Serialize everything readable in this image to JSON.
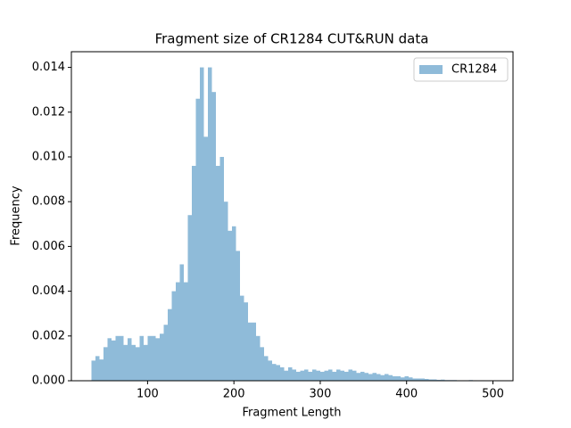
{
  "chart_data": {
    "type": "histogram",
    "title": "Fragment size of CR1284 CUT&RUN data",
    "x_label": "Fragment Length",
    "y_label": "Frequency",
    "xlim": [
      11.75,
      523.25
    ],
    "ylim": [
      0,
      0.0147
    ],
    "xticks": [
      100,
      200,
      300,
      400,
      500
    ],
    "yticks": [
      {
        "value": 0,
        "label": "0.000"
      },
      {
        "value": 0.002,
        "label": "0.002"
      },
      {
        "value": 0.004,
        "label": "0.004"
      },
      {
        "value": 0.006,
        "label": "0.006"
      },
      {
        "value": 0.008,
        "label": "0.008"
      },
      {
        "value": 0.01,
        "label": "0.010"
      },
      {
        "value": 0.012,
        "label": "0.012"
      },
      {
        "value": 0.014,
        "label": "0.014"
      }
    ],
    "legend": "upper right",
    "grid": false,
    "bins": [
      35,
      39.65,
      44.3,
      48.95,
      53.6,
      58.25,
      62.9,
      67.55,
      72.2,
      76.85,
      81.5,
      86.15,
      90.8,
      95.45,
      100.1,
      104.75,
      109.4,
      114.05,
      118.7,
      123.35,
      128,
      132.65,
      137.3,
      141.95,
      146.6,
      151.25,
      155.9,
      160.55,
      165.2,
      169.85,
      174.5,
      179.15,
      183.8,
      188.45,
      193.1,
      197.75,
      202.4,
      207.05,
      211.7,
      216.35,
      221,
      225.65,
      230.3,
      234.95,
      239.6,
      244.25,
      248.9,
      253.55,
      258.2,
      262.85,
      267.5,
      272.15,
      276.8,
      281.45,
      286.1,
      290.75,
      295.4,
      300.05,
      304.7,
      309.35,
      314,
      318.65,
      323.3,
      327.95,
      332.6,
      337.25,
      341.9,
      346.55,
      351.2,
      355.85,
      360.5,
      365.15,
      369.8,
      374.45,
      379.1,
      383.75,
      388.4,
      393.05,
      397.7,
      402.35,
      407,
      411.65,
      416.3,
      420.95,
      425.6,
      430.25,
      434.9,
      439.55,
      444.2,
      448.85,
      453.5,
      458.15,
      462.8,
      467.45,
      472.1,
      476.75,
      481.4,
      486.05,
      490.7,
      495.35,
      500
    ],
    "series": [
      {
        "name": "CR1284",
        "color": "#1f77b4",
        "opacity": 0.5,
        "values": [
          0.0009,
          0.0011,
          0.00095,
          0.0015,
          0.0019,
          0.0018,
          0.002,
          0.002,
          0.0016,
          0.0019,
          0.0016,
          0.0015,
          0.002,
          0.0016,
          0.002,
          0.002,
          0.0019,
          0.0021,
          0.0025,
          0.0032,
          0.004,
          0.0044,
          0.0052,
          0.0044,
          0.0074,
          0.0096,
          0.0126,
          0.014,
          0.0109,
          0.014,
          0.0129,
          0.0096,
          0.01,
          0.008,
          0.0067,
          0.0069,
          0.0058,
          0.0038,
          0.0035,
          0.0026,
          0.0026,
          0.002,
          0.0015,
          0.0011,
          0.0009,
          0.00075,
          0.0007,
          0.0006,
          0.00045,
          0.0006,
          0.0005,
          0.0004,
          0.00045,
          0.0005,
          0.0004,
          0.0005,
          0.00045,
          0.0004,
          0.00045,
          0.0005,
          0.0004,
          0.0005,
          0.00045,
          0.0004,
          0.0005,
          0.00045,
          0.00035,
          0.0004,
          0.00035,
          0.0003,
          0.00035,
          0.0003,
          0.00025,
          0.0003,
          0.00025,
          0.0002,
          0.0002,
          0.00015,
          0.0002,
          0.00015,
          0.0001,
          0.0001,
          0.0001,
          8e-05,
          6e-05,
          6e-05,
          4e-05,
          5e-05,
          3e-05,
          3e-05,
          3e-05,
          2e-05,
          2e-05,
          2e-05,
          3e-05,
          2e-05,
          1e-05,
          2e-05,
          1e-05,
          2e-05
        ]
      }
    ]
  }
}
